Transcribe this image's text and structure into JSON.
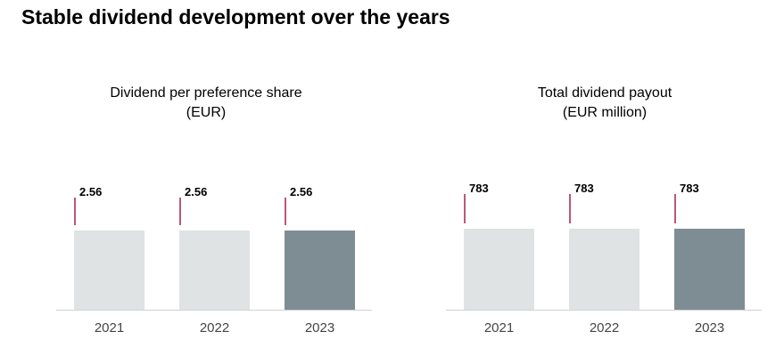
{
  "page": {
    "title": "Stable dividend development over the years"
  },
  "colors": {
    "bar_prior": "#dfe3e3",
    "bar_current": "#7e8d93",
    "marker": "#a3204d",
    "axis": "#cfd3d5"
  },
  "chart_data": [
    {
      "type": "bar",
      "title": "Dividend per preference share",
      "subtitle": "(EUR)",
      "categories": [
        "2021",
        "2022",
        "2023"
      ],
      "values": [
        2.56,
        2.56,
        2.56
      ],
      "value_labels": [
        "2.56",
        "2.56",
        "2.56"
      ],
      "highlight_index": 2,
      "xlabel": "",
      "ylabel": "",
      "ylim": [
        0,
        2.56
      ],
      "grid": false,
      "legend": "none"
    },
    {
      "type": "bar",
      "title": "Total dividend payout",
      "subtitle": "(EUR million)",
      "categories": [
        "2021",
        "2022",
        "2023"
      ],
      "values": [
        783,
        783,
        783
      ],
      "value_labels": [
        "783",
        "783",
        "783"
      ],
      "highlight_index": 2,
      "xlabel": "",
      "ylabel": "",
      "ylim": [
        0,
        783
      ],
      "grid": false,
      "legend": "none"
    }
  ]
}
